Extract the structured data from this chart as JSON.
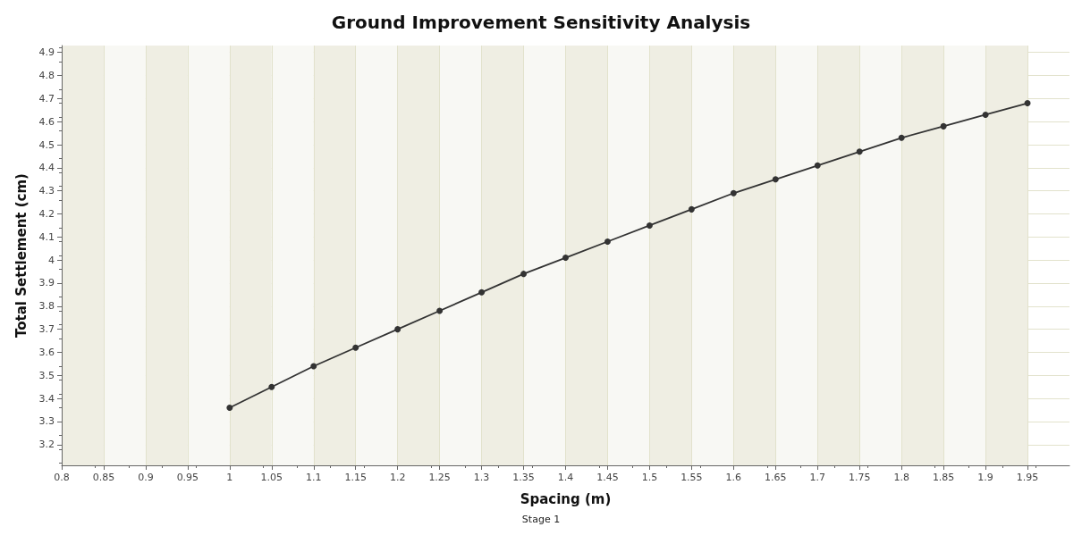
{
  "chart_data": {
    "type": "line",
    "title": "Ground Improvement Sensitivity Analysis",
    "xlabel": "Spacing (m)",
    "ylabel": "Total Settlement (cm)",
    "annotations": [
      "Stage 1"
    ],
    "x": [
      1,
      1.05,
      1.1,
      1.15,
      1.2,
      1.25,
      1.3,
      1.35,
      1.4,
      1.45,
      1.5,
      1.55,
      1.6,
      1.65,
      1.7,
      1.75,
      1.8,
      1.85,
      1.9,
      1.95
    ],
    "series": [
      {
        "color": "#333333",
        "values": [
          3.36,
          3.45,
          3.54,
          3.62,
          3.7,
          3.78,
          3.86,
          3.94,
          4.01,
          4.08,
          4.15,
          4.22,
          4.29,
          4.35,
          4.41,
          4.47,
          4.53,
          4.58,
          4.63,
          4.68
        ]
      }
    ],
    "xlim": [
      0.8,
      2.0
    ],
    "xticks": [
      0.8,
      0.85,
      0.9,
      0.95,
      1,
      1.05,
      1.1,
      1.15,
      1.2,
      1.25,
      1.3,
      1.35,
      1.4,
      1.45,
      1.5,
      1.55,
      1.6,
      1.65,
      1.7,
      1.75,
      1.8,
      1.85,
      1.9,
      1.95
    ],
    "ylim": [
      3.11,
      4.93
    ],
    "yticks": [
      3.2,
      3.3,
      3.4,
      3.5,
      3.6,
      3.7,
      3.8,
      3.9,
      4,
      4.1,
      4.2,
      4.3,
      4.4,
      4.5,
      4.6,
      4.7,
      4.8,
      4.9
    ],
    "grid": true,
    "marker": "circle",
    "line_style": "solid"
  }
}
